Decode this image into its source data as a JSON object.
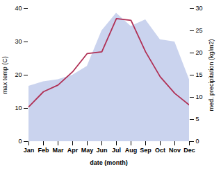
{
  "chart_data": {
    "type": "line",
    "xlabel": "date (month)",
    "ylabel": "max temp (C)",
    "y2label": "med. precipitation (kg/m2)",
    "categories": [
      "Jan",
      "Feb",
      "Mar",
      "Apr",
      "May",
      "Jun",
      "Jul",
      "Aug",
      "Sep",
      "Oct",
      "Nov",
      "Dec"
    ],
    "series": [
      {
        "type": "area",
        "axis": "y2",
        "color": "#b8c4e8",
        "values": [
          12.5,
          13.5,
          14.0,
          15.0,
          17.0,
          25.0,
          29.0,
          26.0,
          27.5,
          23.0,
          22.5,
          14.0
        ]
      },
      {
        "type": "line",
        "color": "#b03055",
        "values": [
          10.5,
          15.0,
          17.0,
          21.0,
          26.5,
          27.0,
          37.0,
          36.5,
          27.0,
          19.5,
          14.5,
          11.0
        ]
      }
    ],
    "ylim": [
      0,
      40
    ],
    "yticks": [
      0,
      10,
      20,
      30,
      40
    ],
    "y2lim": [
      0,
      30
    ],
    "y2ticks": [
      0,
      5,
      10,
      15,
      20,
      25,
      30
    ],
    "grid": false
  }
}
